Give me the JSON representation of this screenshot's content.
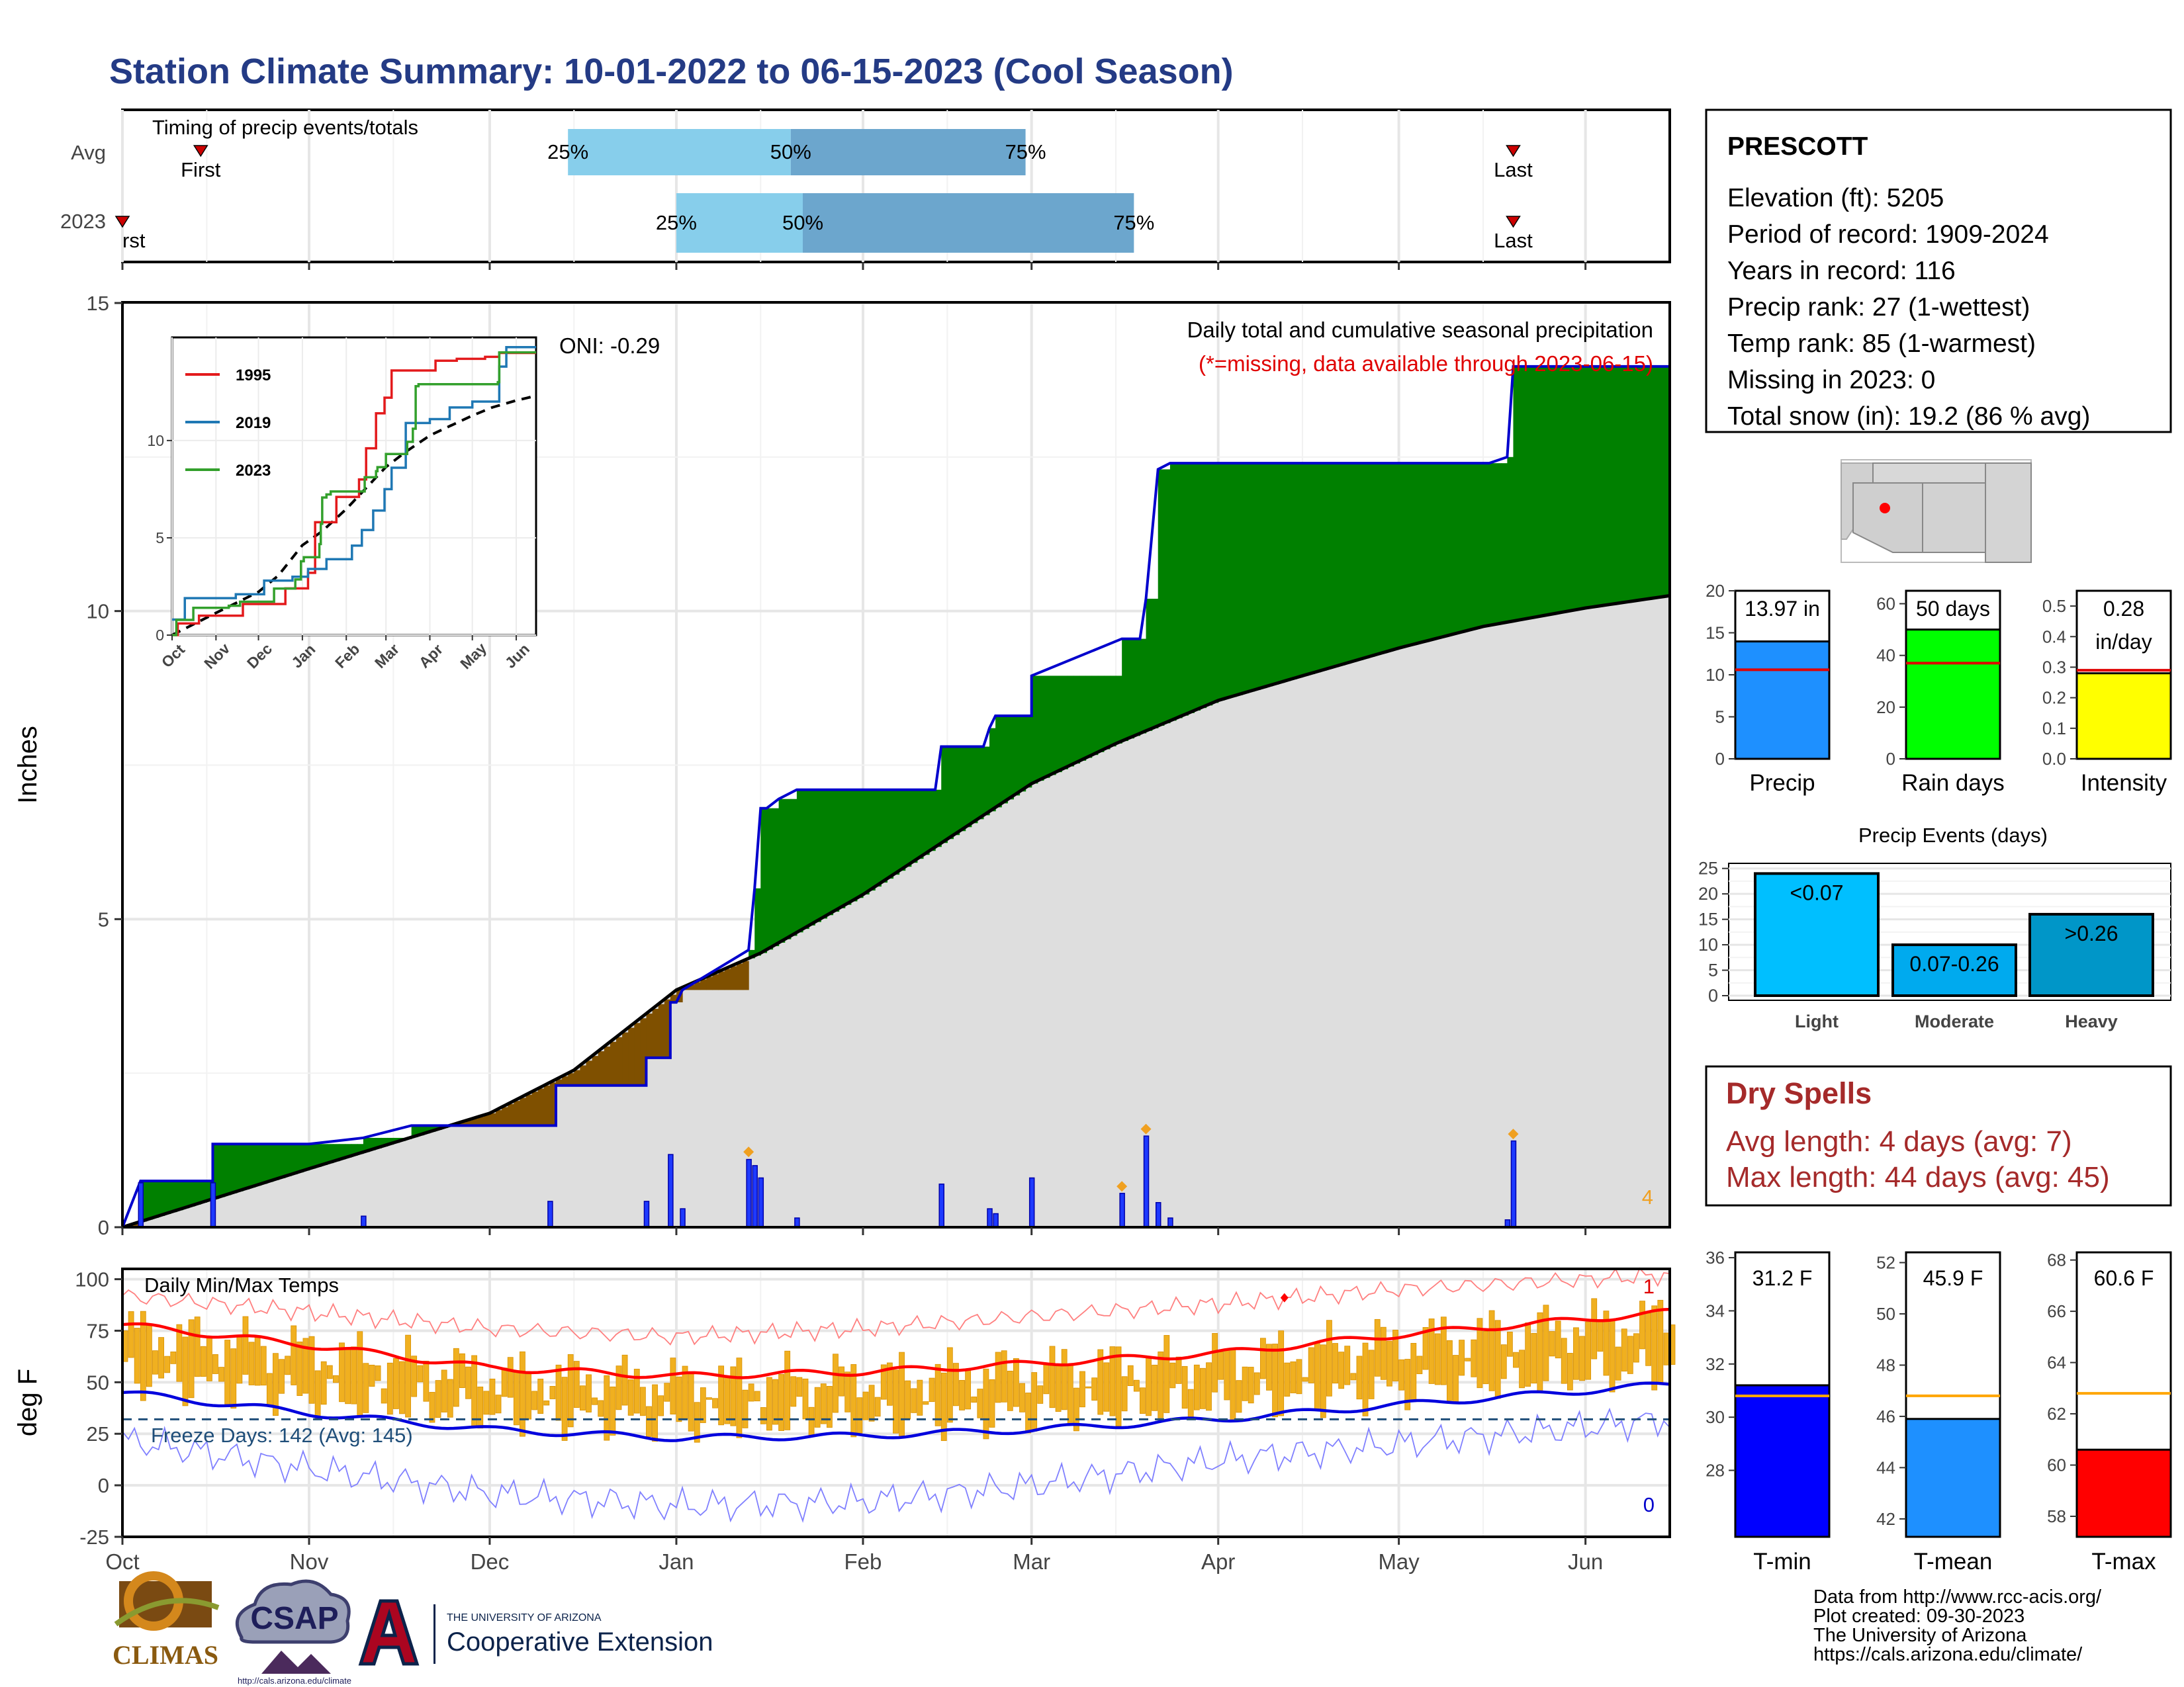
{
  "title": "Station Climate Summary: 10-01-2022 to 06-15-2023 (Cool Season)",
  "months": [
    "Oct",
    "Nov",
    "Dec",
    "Jan",
    "Feb",
    "Mar",
    "Apr",
    "May",
    "Jun"
  ],
  "timing": {
    "label": "Timing of precip events/totals",
    "rows": [
      "Avg",
      "2023"
    ],
    "first_label": "First",
    "last_label": "Last",
    "first_cut_label": "rst",
    "pct_labels": [
      "25%",
      "50%",
      "75%"
    ],
    "avg": {
      "first": "2022-10-14",
      "p25": "2022-12-14",
      "p50": "2023-01-20",
      "p75": "2023-02-28",
      "last": "2023-05-20"
    },
    "y2023": {
      "first": "2022-10-01",
      "p25": "2023-01-01",
      "p50": "2023-01-22",
      "p75": "2023-03-18",
      "last": "2023-05-20"
    },
    "colors": {
      "light": "#87CEEB",
      "dark": "#6CA6CD",
      "marker": "#cc0000"
    }
  },
  "precip": {
    "ylabel": "Inches",
    "header": "Daily total and cumulative seasonal precipitation",
    "subheader": "(*=missing, data available through 2023-06-15)",
    "oni": "ONI: -0.29",
    "corner_count": "4",
    "colors": {
      "above": "#008000",
      "below": "#7F5000",
      "avg_fill": "#DEDEDE",
      "cum_line": "#0000CC",
      "daily_bar": "#1E3AFF"
    }
  },
  "inset": {
    "yticks": [
      "0",
      "5",
      "10"
    ],
    "xticks": [
      "Oct",
      "Nov",
      "Dec",
      "Jan",
      "Feb",
      "Mar",
      "Apr",
      "May",
      "Jun"
    ],
    "legend": [
      {
        "name": "1995",
        "color": "#e31a1c"
      },
      {
        "name": "2019",
        "color": "#1f78b4"
      },
      {
        "name": "2023",
        "color": "#33a02c"
      }
    ]
  },
  "temps": {
    "ylabel": "deg F",
    "label": "Daily Min/Max Temps",
    "freeze": "Freeze Days: 142 (Avg: 145)",
    "count_top": "1",
    "count_bottom": "0",
    "colors": {
      "bars": "#F0B020",
      "avg_max": "#ff0000",
      "avg_min": "#0000dd",
      "rec_max": "#ff8080",
      "rec_min": "#8080ff",
      "freeze": "#1f4e79"
    }
  },
  "station": {
    "name": "PRESCOTT",
    "lines": [
      "Elevation (ft): 5205",
      "Period of record: 1909-2024",
      "Years in record: 116",
      "Precip rank: 27 (1-wettest)",
      "Temp rank: 85 (1-warmest)",
      "Missing in 2023: 0",
      "Total snow (in): 19.2 (86 % avg)"
    ]
  },
  "mini_bars": [
    {
      "label": "Precip",
      "value_label": "13.97 in",
      "yticks": [
        "0",
        "5",
        "10",
        "15",
        "20"
      ],
      "color": "#1E90FF"
    },
    {
      "label": "Rain days",
      "value_label": "50 days",
      "yticks": [
        "0",
        "20",
        "40",
        "60"
      ],
      "color": "#00FF00"
    },
    {
      "label": "Intensity",
      "value_label": "0.28",
      "value_label2": "in/day",
      "yticks": [
        "0.0",
        "0.1",
        "0.2",
        "0.3",
        "0.4",
        "0.5"
      ],
      "color": "#FFFF00"
    }
  ],
  "events": {
    "title": "Precip Events (days)",
    "yticks": [
      "0",
      "5",
      "10",
      "15",
      "20",
      "25"
    ],
    "bars": [
      {
        "cat": "Light",
        "label": "<0.07",
        "color": "#00BFFF"
      },
      {
        "cat": "Moderate",
        "label": "0.07-0.26",
        "color": "#00AAEE"
      },
      {
        "cat": "Heavy",
        "label": ">0.26",
        "color": "#0096C8"
      }
    ]
  },
  "dry_spells": {
    "title": "Dry Spells",
    "lines": [
      "Avg length: 4 days (avg: 7)",
      "Max length: 44 days (avg: 45)"
    ],
    "color": "#A52A2A"
  },
  "temp_bars": [
    {
      "label": "T-min",
      "value_label": "31.2 F",
      "yticks": [
        "28",
        "30",
        "32",
        "34",
        "36"
      ],
      "color": "#0000FF"
    },
    {
      "label": "T-mean",
      "value_label": "45.9 F",
      "yticks": [
        "42",
        "44",
        "46",
        "48",
        "50",
        "52"
      ],
      "color": "#1E90FF"
    },
    {
      "label": "T-max",
      "value_label": "60.6 F",
      "yticks": [
        "58",
        "60",
        "62",
        "64",
        "66",
        "68"
      ],
      "color": "#FF0000"
    }
  ],
  "footer": [
    "Data from http://www.rcc-acis.org/",
    "Plot created: 09-30-2023",
    "The University of Arizona",
    "https://cals.arizona.edu/climate/"
  ],
  "logos": {
    "climas": "CLIMAS",
    "csap": "CSAP",
    "csap_url": "http://cals.arizona.edu/climate",
    "ua_small": "THE UNIVERSITY OF ARIZONA",
    "ua_big": "Cooperative Extension"
  },
  "chart_data": [
    {
      "type": "area",
      "title": "Daily total and cumulative seasonal precipitation",
      "ylabel": "Inches",
      "ylim": [
        0,
        15
      ],
      "yticks": [
        0,
        5,
        10,
        15
      ],
      "xlim": [
        "2022-10-01",
        "2023-06-15"
      ],
      "cumulative_2023": [
        [
          "2022-10-01",
          0
        ],
        [
          "2022-10-04",
          0.75
        ],
        [
          "2022-10-16",
          0.75
        ],
        [
          "2022-10-16",
          1.35
        ],
        [
          "2022-11-01",
          1.35
        ],
        [
          "2022-11-10",
          1.45
        ],
        [
          "2022-11-18",
          1.65
        ],
        [
          "2022-12-05",
          1.65
        ],
        [
          "2022-12-12",
          1.65
        ],
        [
          "2022-12-12",
          2.3
        ],
        [
          "2022-12-27",
          2.3
        ],
        [
          "2022-12-27",
          2.75
        ],
        [
          "2022-12-31",
          2.75
        ],
        [
          "2022-12-31",
          3.65
        ],
        [
          "2023-01-01",
          3.65
        ],
        [
          "2023-01-02",
          3.85
        ],
        [
          "2023-01-13",
          4.5
        ],
        [
          "2023-01-14",
          5.5
        ],
        [
          "2023-01-15",
          6.8
        ],
        [
          "2023-01-16",
          6.8
        ],
        [
          "2023-01-18",
          6.95
        ],
        [
          "2023-01-21",
          7.1
        ],
        [
          "2023-02-13",
          7.1
        ],
        [
          "2023-02-14",
          7.8
        ],
        [
          "2023-02-21",
          7.8
        ],
        [
          "2023-02-22",
          8.1
        ],
        [
          "2023-02-23",
          8.3
        ],
        [
          "2023-03-01",
          8.3
        ],
        [
          "2023-03-01",
          8.95
        ],
        [
          "2023-03-16",
          9.55
        ],
        [
          "2023-03-19",
          9.55
        ],
        [
          "2023-03-20",
          10.2
        ],
        [
          "2023-03-22",
          12.3
        ],
        [
          "2023-03-24",
          12.4
        ],
        [
          "2023-04-02",
          12.4
        ],
        [
          "2023-05-16",
          12.4
        ],
        [
          "2023-05-19",
          12.5
        ],
        [
          "2023-05-20",
          13.97
        ],
        [
          "2023-06-15",
          13.97
        ]
      ],
      "average_cumulative": [
        [
          "2022-10-01",
          0
        ],
        [
          "2022-11-01",
          0.95
        ],
        [
          "2022-12-01",
          1.85
        ],
        [
          "2022-12-15",
          2.55
        ],
        [
          "2023-01-01",
          3.85
        ],
        [
          "2023-01-15",
          4.45
        ],
        [
          "2023-02-01",
          5.4
        ],
        [
          "2023-02-15",
          6.3
        ],
        [
          "2023-03-01",
          7.2
        ],
        [
          "2023-03-15",
          7.85
        ],
        [
          "2023-04-01",
          8.55
        ],
        [
          "2023-04-15",
          8.95
        ],
        [
          "2023-05-01",
          9.4
        ],
        [
          "2023-05-15",
          9.75
        ],
        [
          "2023-06-01",
          10.05
        ],
        [
          "2023-06-15",
          10.25
        ]
      ],
      "daily": [
        [
          "2022-10-04",
          0.72
        ],
        [
          "2022-10-16",
          0.72
        ],
        [
          "2022-11-10",
          0.18
        ],
        [
          "2022-12-11",
          0.42
        ],
        [
          "2022-12-27",
          0.42
        ],
        [
          "2022-12-31",
          1.18
        ],
        [
          "2023-01-02",
          0.3
        ],
        [
          "2023-01-13",
          1.1
        ],
        [
          "2023-01-14",
          1.0
        ],
        [
          "2023-01-15",
          0.8
        ],
        [
          "2023-01-21",
          0.15
        ],
        [
          "2023-02-14",
          0.7
        ],
        [
          "2023-02-22",
          0.3
        ],
        [
          "2023-02-23",
          0.22
        ],
        [
          "2023-03-01",
          0.8
        ],
        [
          "2023-03-16",
          0.55
        ],
        [
          "2023-03-20",
          1.48
        ],
        [
          "2023-03-22",
          0.4
        ],
        [
          "2023-03-24",
          0.15
        ],
        [
          "2023-05-19",
          0.12
        ],
        [
          "2023-05-20",
          1.4
        ]
      ]
    },
    {
      "type": "line",
      "title": "Daily Min/Max Temps",
      "ylabel": "deg F",
      "ylim": [
        -25,
        105
      ],
      "yticks": [
        -25,
        0,
        25,
        50,
        75,
        100
      ],
      "freeze_line": 32,
      "avg_max": [
        [
          "2022-10-01",
          78
        ],
        [
          "2022-11-01",
          68
        ],
        [
          "2022-12-01",
          57
        ],
        [
          "2023-01-01",
          53
        ],
        [
          "2023-02-01",
          55
        ],
        [
          "2023-03-01",
          59
        ],
        [
          "2023-04-01",
          64
        ],
        [
          "2023-05-01",
          73
        ],
        [
          "2023-06-15",
          84
        ]
      ],
      "avg_min": [
        [
          "2022-10-01",
          45
        ],
        [
          "2022-11-01",
          35
        ],
        [
          "2022-12-01",
          27
        ],
        [
          "2023-01-01",
          23
        ],
        [
          "2023-02-01",
          24
        ],
        [
          "2023-03-01",
          27
        ],
        [
          "2023-04-01",
          32
        ],
        [
          "2023-05-01",
          39
        ],
        [
          "2023-06-15",
          49
        ]
      ],
      "record_max": [
        [
          "2022-10-01",
          92
        ],
        [
          "2022-11-01",
          84
        ],
        [
          "2022-12-01",
          76
        ],
        [
          "2023-01-01",
          72
        ],
        [
          "2023-02-01",
          76
        ],
        [
          "2023-03-01",
          82
        ],
        [
          "2023-04-01",
          88
        ],
        [
          "2023-05-01",
          95
        ],
        [
          "2023-06-15",
          102
        ]
      ],
      "record_min": [
        [
          "2022-10-01",
          22
        ],
        [
          "2022-11-01",
          8
        ],
        [
          "2022-12-01",
          -4
        ],
        [
          "2023-01-01",
          -10
        ],
        [
          "2023-02-01",
          -8
        ],
        [
          "2023-03-01",
          0
        ],
        [
          "2023-04-01",
          12
        ],
        [
          "2023-05-01",
          20
        ],
        [
          "2023-06-15",
          32
        ]
      ]
    },
    {
      "type": "bar",
      "title": "Precip Events (days)",
      "categories": [
        "Light",
        "Moderate",
        "Heavy"
      ],
      "values": [
        24,
        10,
        16
      ],
      "ylim": [
        0,
        25
      ]
    },
    {
      "type": "bar",
      "categories": [
        "Precip",
        "Rain days",
        "Intensity"
      ],
      "values": [
        13.97,
        50,
        0.28
      ],
      "averages": [
        10.6,
        37,
        0.29
      ],
      "ylims": [
        [
          0,
          20
        ],
        [
          0,
          65
        ],
        [
          0,
          0.55
        ]
      ]
    },
    {
      "type": "bar",
      "categories": [
        "T-min",
        "T-mean",
        "T-max"
      ],
      "values": [
        31.2,
        45.9,
        60.6
      ],
      "averages": [
        30.8,
        46.8,
        62.8
      ],
      "ylims": [
        [
          25.5,
          36.2
        ],
        [
          41.3,
          52.4
        ],
        [
          57.2,
          68.3
        ]
      ]
    }
  ]
}
